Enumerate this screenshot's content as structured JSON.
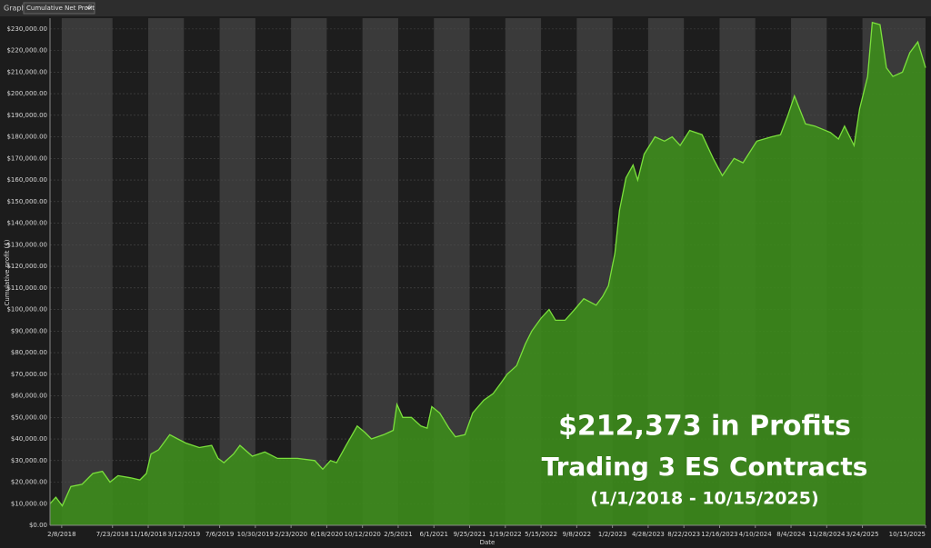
{
  "toolbar": {
    "label": "Graph",
    "dropdown": "Cumulative Net Profit"
  },
  "chart_data": {
    "type": "area",
    "y_label": "Cumulative profit ($)",
    "x_label": "Date",
    "annotations": [
      "$212,373 in Profits",
      "Trading 3 ES Contracts",
      "(1/1/2018 - 10/15/2025)"
    ],
    "x": [
      "2018-01-01",
      "2018-01-20",
      "2018-02-10",
      "2018-03-10",
      "2018-04-15",
      "2018-05-20",
      "2018-06-20",
      "2018-07-15",
      "2018-08-10",
      "2018-09-20",
      "2018-10-20",
      "2018-11-10",
      "2018-11-25",
      "2018-12-20",
      "2019-01-25",
      "2019-02-20",
      "2019-03-20",
      "2019-05-01",
      "2019-06-10",
      "2019-07-01",
      "2019-07-20",
      "2019-08-20",
      "2019-09-10",
      "2019-10-20",
      "2019-11-30",
      "2020-01-10",
      "2020-03-15",
      "2020-05-10",
      "2020-06-05",
      "2020-06-30",
      "2020-07-20",
      "2020-08-20",
      "2020-09-25",
      "2020-10-20",
      "2020-11-10",
      "2020-12-20",
      "2021-01-20",
      "2021-02-01",
      "2021-02-20",
      "2021-03-20",
      "2021-04-20",
      "2021-05-10",
      "2021-05-25",
      "2021-06-20",
      "2021-07-20",
      "2021-08-10",
      "2021-09-10",
      "2021-10-05",
      "2021-11-10",
      "2021-12-10",
      "2022-01-05",
      "2022-01-25",
      "2022-02-25",
      "2022-03-25",
      "2022-04-15",
      "2022-05-15",
      "2022-06-10",
      "2022-07-01",
      "2022-08-01",
      "2022-09-01",
      "2022-10-01",
      "2022-11-10",
      "2022-12-01",
      "2022-12-20",
      "2023-01-10",
      "2023-01-25",
      "2023-02-15",
      "2023-03-10",
      "2023-03-25",
      "2023-04-15",
      "2023-05-20",
      "2023-06-20",
      "2023-07-15",
      "2023-08-10",
      "2023-09-10",
      "2023-10-20",
      "2023-11-25",
      "2023-12-25",
      "2024-02-01",
      "2024-03-01",
      "2024-04-15",
      "2024-06-01",
      "2024-07-01",
      "2024-07-25",
      "2024-08-15",
      "2024-09-20",
      "2024-10-20",
      "2024-12-10",
      "2025-01-05",
      "2025-01-25",
      "2025-02-25",
      "2025-03-15",
      "2025-04-10",
      "2025-04-25",
      "2025-05-20",
      "2025-06-10",
      "2025-07-01",
      "2025-08-01",
      "2025-08-25",
      "2025-09-20",
      "2025-10-15"
    ],
    "series": [
      {
        "name": "Cumulative Net Profit",
        "color": "#3d8c1c",
        "line_color": "#7be03c",
        "values": [
          10000,
          13000,
          9000,
          18000,
          19000,
          24000,
          25000,
          20000,
          23000,
          22000,
          21000,
          24000,
          33000,
          35000,
          42000,
          40000,
          38000,
          36000,
          37000,
          31000,
          29000,
          33000,
          37000,
          32000,
          34000,
          31000,
          31000,
          30000,
          26000,
          30000,
          29000,
          37000,
          46000,
          43000,
          40000,
          42000,
          44000,
          56000,
          50000,
          50000,
          46000,
          45000,
          55000,
          52000,
          45000,
          41000,
          42000,
          52000,
          58000,
          61000,
          66000,
          70000,
          74000,
          84000,
          90000,
          96000,
          100000,
          95000,
          95000,
          100000,
          105000,
          102000,
          106000,
          111000,
          126000,
          146000,
          161000,
          167000,
          160000,
          172000,
          180000,
          178000,
          180000,
          176000,
          183000,
          181000,
          170000,
          162000,
          170000,
          168000,
          178000,
          180000,
          181000,
          190000,
          199000,
          186000,
          185000,
          182000,
          179000,
          185000,
          176000,
          193000,
          208000,
          233000,
          232000,
          212000,
          208000,
          210000,
          219000,
          224000,
          212000
        ]
      }
    ],
    "xlim": [
      "2018-01-01",
      "2025-10-15"
    ],
    "xticks": [
      {
        "value": "2018-02-08",
        "label": "2/8/2018"
      },
      {
        "value": "2018-07-23",
        "label": "7/23/2018"
      },
      {
        "value": "2018-11-16",
        "label": "11/16/2018"
      },
      {
        "value": "2019-03-12",
        "label": "3/12/2019"
      },
      {
        "value": "2019-07-06",
        "label": "7/6/2019"
      },
      {
        "value": "2019-10-30",
        "label": "10/30/2019"
      },
      {
        "value": "2020-02-23",
        "label": "2/23/2020"
      },
      {
        "value": "2020-06-18",
        "label": "6/18/2020"
      },
      {
        "value": "2020-10-12",
        "label": "10/12/2020"
      },
      {
        "value": "2021-02-05",
        "label": "2/5/2021"
      },
      {
        "value": "2021-06-01",
        "label": "6/1/2021"
      },
      {
        "value": "2021-09-25",
        "label": "9/25/2021"
      },
      {
        "value": "2022-01-19",
        "label": "1/19/2022"
      },
      {
        "value": "2022-05-15",
        "label": "5/15/2022"
      },
      {
        "value": "2022-09-08",
        "label": "9/8/2022"
      },
      {
        "value": "2023-01-02",
        "label": "1/2/2023"
      },
      {
        "value": "2023-04-28",
        "label": "4/28/2023"
      },
      {
        "value": "2023-08-22",
        "label": "8/22/2023"
      },
      {
        "value": "2023-12-16",
        "label": "12/16/2023"
      },
      {
        "value": "2024-04-10",
        "label": "4/10/2024"
      },
      {
        "value": "2024-08-04",
        "label": "8/4/2024"
      },
      {
        "value": "2024-11-28",
        "label": "11/28/2024"
      },
      {
        "value": "2025-03-24",
        "label": "3/24/2025"
      },
      {
        "value": "2025-10-15",
        "label": "10/15/2025"
      }
    ],
    "ylim": [
      0,
      235000
    ],
    "yticks": [
      {
        "value": 0,
        "label": "$0.00"
      },
      {
        "value": 10000,
        "label": "$10,000.00"
      },
      {
        "value": 20000,
        "label": "$20,000.00"
      },
      {
        "value": 30000,
        "label": "$30,000.00"
      },
      {
        "value": 40000,
        "label": "$40,000.00"
      },
      {
        "value": 50000,
        "label": "$50,000.00"
      },
      {
        "value": 60000,
        "label": "$60,000.00"
      },
      {
        "value": 70000,
        "label": "$70,000.00"
      },
      {
        "value": 80000,
        "label": "$80,000.00"
      },
      {
        "value": 90000,
        "label": "$90,000.00"
      },
      {
        "value": 100000,
        "label": "$100,000.00"
      },
      {
        "value": 110000,
        "label": "$110,000.00"
      },
      {
        "value": 120000,
        "label": "$120,000.00"
      },
      {
        "value": 130000,
        "label": "$130,000.00"
      },
      {
        "value": 140000,
        "label": "$140,000.00"
      },
      {
        "value": 150000,
        "label": "$150,000.00"
      },
      {
        "value": 160000,
        "label": "$160,000.00"
      },
      {
        "value": 170000,
        "label": "$170,000.00"
      },
      {
        "value": 180000,
        "label": "$180,000.00"
      },
      {
        "value": 190000,
        "label": "$190,000.00"
      },
      {
        "value": 200000,
        "label": "$200,000.00"
      },
      {
        "value": 210000,
        "label": "$210,000.00"
      },
      {
        "value": 220000,
        "label": "$220,000.00"
      },
      {
        "value": 230000,
        "label": "$230,000.00"
      }
    ],
    "grid": true
  }
}
